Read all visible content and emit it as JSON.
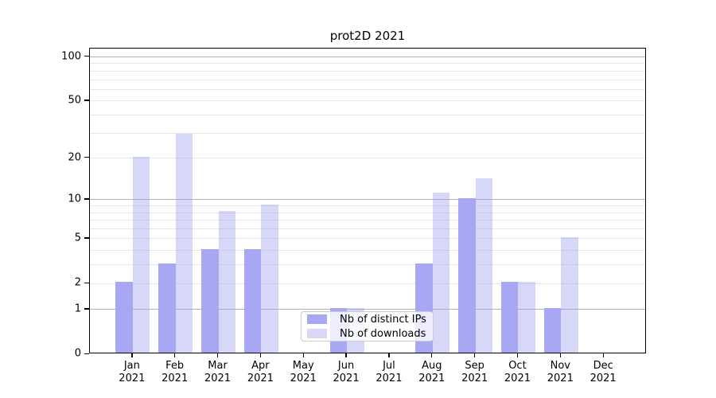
{
  "title": "prot2D 2021",
  "chart_data": {
    "type": "bar",
    "title": "prot2D 2021",
    "categories": [
      "Jan",
      "Feb",
      "Mar",
      "Apr",
      "May",
      "Jun",
      "Jul",
      "Aug",
      "Sep",
      "Oct",
      "Nov",
      "Dec"
    ],
    "category_year": "2021",
    "series": [
      {
        "name": "Nb of distinct IPs",
        "color": "#a7a7f3",
        "fill": "#a7a7f3",
        "values": [
          2,
          3,
          4,
          4,
          0,
          1,
          0,
          3,
          10,
          2,
          1,
          0
        ]
      },
      {
        "name": "Nb of downloads",
        "color": "#d9d9f7",
        "fill": "rgba(160,160,238,0.42)",
        "values": [
          20,
          29,
          8,
          9,
          0,
          1,
          0,
          11,
          14,
          2,
          5,
          0
        ]
      }
    ],
    "xlabel": "",
    "ylabel": "",
    "y_scale": "log1p",
    "ylim": [
      0,
      114
    ],
    "y_ticks": [
      100,
      50,
      20,
      10,
      5,
      2,
      1,
      0
    ],
    "major_gridlines": [
      1,
      10,
      100
    ],
    "minor_gridlines": [
      2,
      3,
      4,
      5,
      6,
      7,
      8,
      9,
      20,
      30,
      40,
      50,
      60,
      70,
      80,
      90
    ],
    "grid": true,
    "legend_position": "lower-center"
  },
  "colors": {
    "background": "#ffffff",
    "spine": "#000000",
    "text": "#000000",
    "major_grid": "#b0b0b0",
    "minor_grid": "#e6e6e6",
    "legend_border": "#cccccc"
  }
}
